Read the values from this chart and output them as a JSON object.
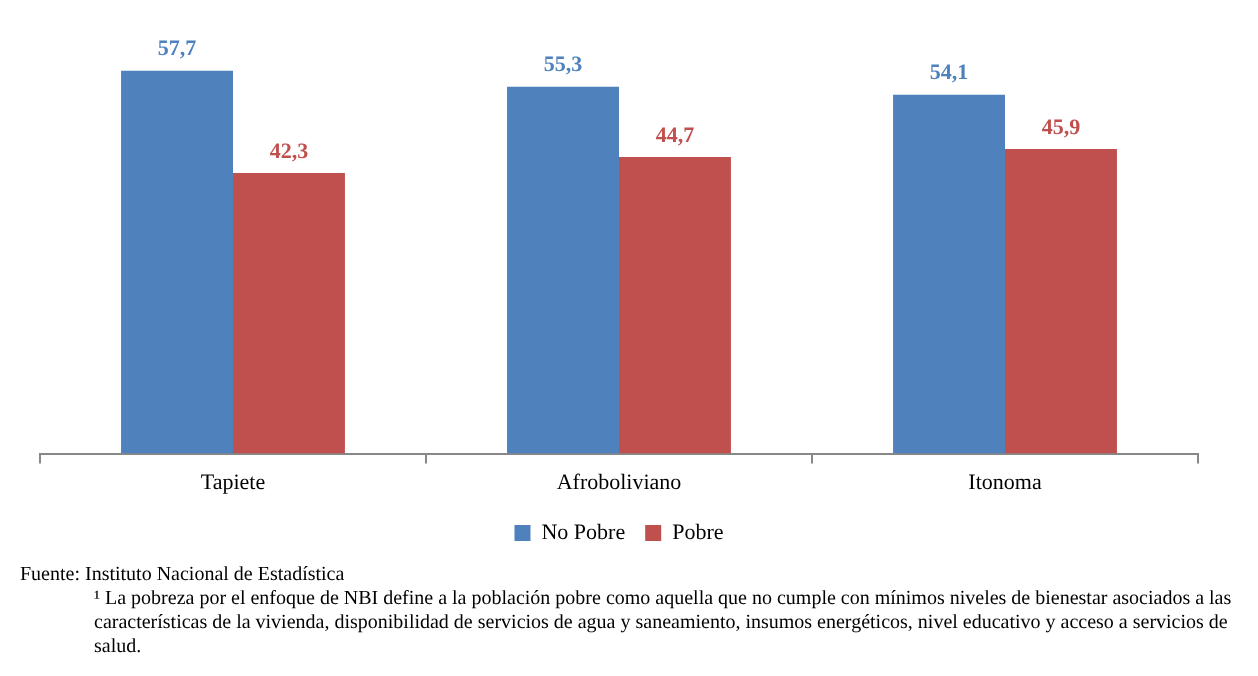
{
  "chart_data": {
    "type": "bar",
    "categories": [
      "Tapiete",
      "Afroboliviano",
      "Itonoma"
    ],
    "series": [
      {
        "name": "No Pobre",
        "color": "#4f81bd",
        "values": [
          57.7,
          55.3,
          54.1
        ],
        "value_labels": [
          "57,7",
          "55,3",
          "54,1"
        ]
      },
      {
        "name": "Pobre",
        "color": "#c0504d",
        "values": [
          42.3,
          44.7,
          45.9
        ],
        "value_labels": [
          "42,3",
          "44,7",
          "45,9"
        ]
      }
    ],
    "legend": "bottom",
    "annotations": [
      "Fuente: Instituto Nacional de Estadística",
      "¹ La pobreza por el enfoque de NBI define a la población pobre como aquella que no cumple con mínimos niveles de bienestar asociados a las características de la vivienda, disponibilidad de servicios de agua y saneamiento, insumos energéticos, nivel educativo y acceso a servicios de salud."
    ]
  }
}
